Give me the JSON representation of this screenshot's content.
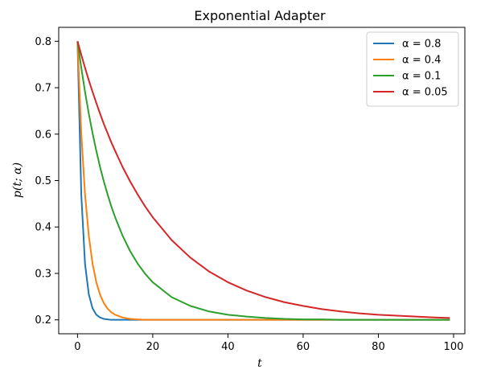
{
  "chart_data": {
    "type": "line",
    "title": "Exponential Adapter",
    "xlabel": "t",
    "ylabel": "p(t; α)",
    "xlim": [
      -5,
      103
    ],
    "ylim": [
      0.17,
      0.83
    ],
    "xticks": [
      0,
      20,
      40,
      60,
      80,
      100
    ],
    "yticks": [
      0.2,
      0.3,
      0.4,
      0.5,
      0.6,
      0.7,
      0.8
    ],
    "xtick_labels": [
      "0",
      "20",
      "40",
      "60",
      "80",
      "100"
    ],
    "ytick_labels": [
      "0.2",
      "0.3",
      "0.4",
      "0.5",
      "0.6",
      "0.7",
      "0.8"
    ],
    "grid": false,
    "legend_position": "top-right",
    "x": [
      0,
      1,
      2,
      3,
      4,
      5,
      6,
      7,
      8,
      9,
      10,
      12,
      14,
      16,
      18,
      20,
      25,
      30,
      35,
      40,
      45,
      50,
      55,
      60,
      65,
      70,
      75,
      80,
      85,
      90,
      95,
      99
    ],
    "series": [
      {
        "name": "α = 0.8",
        "color": "#1f77b4",
        "values": [
          0.8,
          0.47,
          0.32,
          0.255,
          0.225,
          0.211,
          0.205,
          0.202,
          0.201,
          0.2,
          0.2,
          0.2,
          0.2,
          0.2,
          0.2,
          0.2,
          0.2,
          0.2,
          0.2,
          0.2,
          0.2,
          0.2,
          0.2,
          0.2,
          0.2,
          0.2,
          0.2,
          0.2,
          0.2,
          0.2,
          0.2,
          0.2
        ]
      },
      {
        "name": "α = 0.4",
        "color": "#ff7f0e",
        "values": [
          0.8,
          0.602,
          0.47,
          0.381,
          0.321,
          0.281,
          0.254,
          0.236,
          0.224,
          0.216,
          0.211,
          0.205,
          0.202,
          0.201,
          0.2,
          0.2,
          0.2,
          0.2,
          0.2,
          0.2,
          0.2,
          0.2,
          0.2,
          0.2,
          0.2,
          0.2,
          0.2,
          0.2,
          0.2,
          0.2,
          0.2,
          0.2
        ]
      },
      {
        "name": "α = 0.1",
        "color": "#2ca02c",
        "values": [
          0.8,
          0.743,
          0.691,
          0.644,
          0.602,
          0.564,
          0.529,
          0.498,
          0.47,
          0.444,
          0.421,
          0.381,
          0.348,
          0.321,
          0.299,
          0.281,
          0.249,
          0.23,
          0.218,
          0.211,
          0.207,
          0.204,
          0.202,
          0.201,
          0.201,
          0.2,
          0.2,
          0.2,
          0.2,
          0.2,
          0.2,
          0.2
        ]
      },
      {
        "name": "α = 0.05",
        "color": "#d62728",
        "values": [
          0.8,
          0.771,
          0.743,
          0.716,
          0.691,
          0.667,
          0.644,
          0.622,
          0.602,
          0.582,
          0.564,
          0.529,
          0.498,
          0.47,
          0.444,
          0.421,
          0.372,
          0.334,
          0.304,
          0.281,
          0.263,
          0.249,
          0.238,
          0.23,
          0.223,
          0.218,
          0.214,
          0.211,
          0.209,
          0.207,
          0.205,
          0.204
        ]
      }
    ]
  }
}
